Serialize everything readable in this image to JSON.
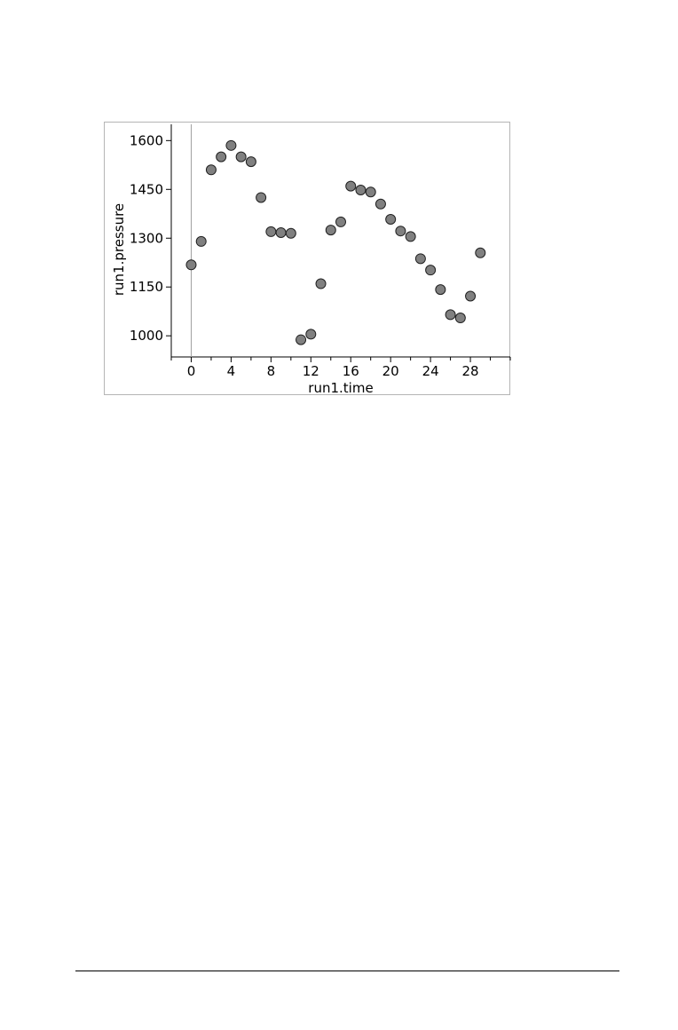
{
  "chart_data": {
    "type": "scatter",
    "title": "",
    "xlabel": "run1.time",
    "ylabel": "run1.pressure",
    "xlim": [
      -2,
      32
    ],
    "ylim": [
      935,
      1650
    ],
    "x_ticks": [
      0,
      4,
      8,
      12,
      16,
      20,
      24,
      28
    ],
    "x_minor_step": 2,
    "y_ticks": [
      1000,
      1150,
      1300,
      1450,
      1600
    ],
    "grid": false,
    "legend": "none",
    "colors": {
      "marker_fill": "#808080",
      "marker_stroke": "#202020",
      "axis": "#000000",
      "zero_line": "#a0a0a0"
    },
    "series": [
      {
        "x": [
          0,
          1,
          2,
          3,
          4,
          5,
          6,
          7,
          8,
          9,
          10,
          11,
          12,
          13,
          14,
          15,
          16,
          17,
          18,
          19,
          20,
          21,
          22,
          23,
          24,
          25,
          26,
          27,
          28,
          29
        ],
        "y": [
          1218,
          1290,
          1510,
          1550,
          1585,
          1550,
          1535,
          1425,
          1320,
          1317,
          1315,
          988,
          1005,
          1160,
          1325,
          1350,
          1460,
          1448,
          1442,
          1405,
          1358,
          1322,
          1305,
          1237,
          1202,
          1142,
          1065,
          1055,
          1122,
          1255
        ]
      }
    ]
  }
}
